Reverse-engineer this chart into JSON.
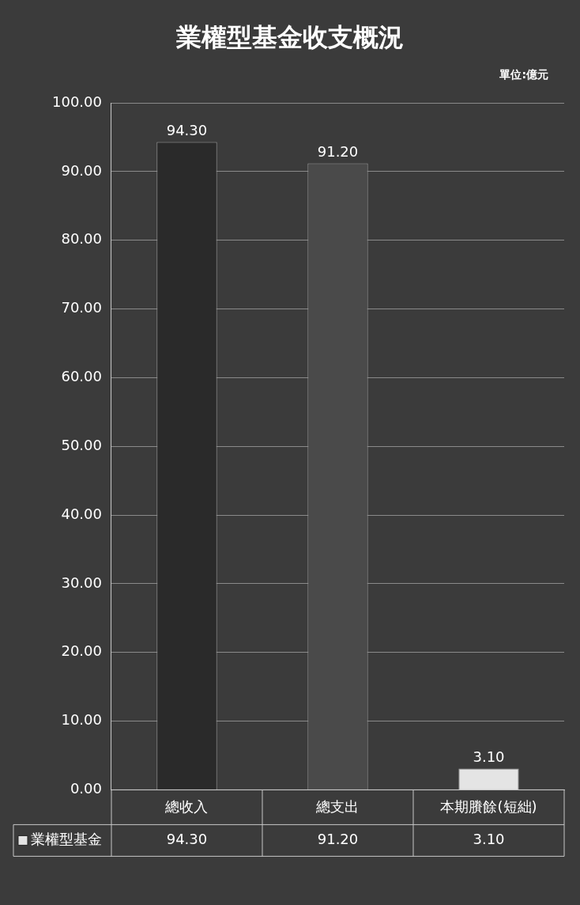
{
  "chart_data": {
    "type": "bar",
    "title": "業權型基金收支概況",
    "annotations": [
      "單位:億元"
    ],
    "categories": [
      "總收入",
      "總支出",
      "本期賸餘(短絀)"
    ],
    "series": [
      {
        "name": "業權型基金",
        "colors": [
          "#2a2a2a",
          "#4a4a4a",
          "#e4e4e4"
        ],
        "values": [
          94.3,
          91.2,
          3.1
        ],
        "value_labels": [
          "94.30",
          "91.20",
          "3.10"
        ]
      }
    ],
    "ylim": [
      0,
      100
    ],
    "yticks": [
      {
        "value": 0,
        "label": "0.00"
      },
      {
        "value": 10,
        "label": "10.00"
      },
      {
        "value": 20,
        "label": "20.00"
      },
      {
        "value": 30,
        "label": "30.00"
      },
      {
        "value": 40,
        "label": "40.00"
      },
      {
        "value": 50,
        "label": "50.00"
      },
      {
        "value": 60,
        "label": "60.00"
      },
      {
        "value": 70,
        "label": "70.00"
      },
      {
        "value": 80,
        "label": "80.00"
      },
      {
        "value": 90,
        "label": "90.00"
      },
      {
        "value": 100,
        "label": "100.00"
      }
    ],
    "grid": "y",
    "legend": "bottom left"
  }
}
